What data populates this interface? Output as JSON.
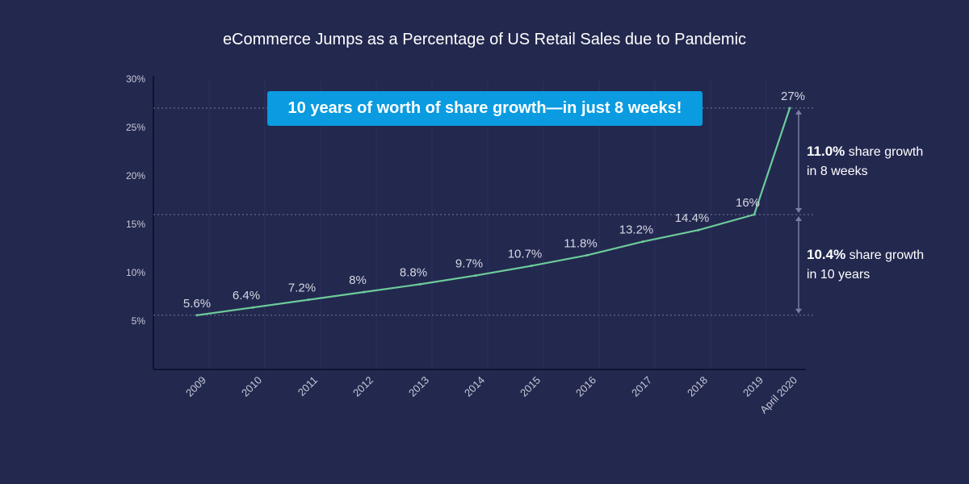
{
  "chart_data": {
    "type": "line",
    "title": "eCommerce Jumps as a Percentage of US Retail Sales due to Pandemic",
    "categories": [
      "2009",
      "2010",
      "2011",
      "2012",
      "2013",
      "2014",
      "2015",
      "2016",
      "2017",
      "2018",
      "2019",
      "April 2020"
    ],
    "series": [
      {
        "values": [
          5.6,
          6.4,
          7.2,
          8,
          8.8,
          9.7,
          10.7,
          11.8,
          13.2,
          14.4,
          16,
          27
        ],
        "labels": [
          "5.6%",
          "6.4%",
          "7.2%",
          "8%",
          "8.8%",
          "9.7%",
          "10.7%",
          "11.8%",
          "13.2%",
          "14.4%",
          "16%",
          "27%"
        ]
      }
    ],
    "yticks": [
      "5%",
      "10%",
      "15%",
      "20%",
      "25%",
      "30%"
    ],
    "ylim": [
      0,
      30
    ],
    "reference_lines": [
      5.6,
      16,
      27
    ],
    "grid": false,
    "line_color": "#6dcb9a",
    "background_color": "#23284f",
    "annotation": {
      "callout": "10 years of worth of share growth—in just 8 weeks!",
      "callout_color": "#0a9be0",
      "upper": {
        "value": "11.0%",
        "text": "share growth",
        "line2": "in 8 weeks"
      },
      "lower": {
        "value": "10.4%",
        "text": "share growth",
        "line2": "in 10 years"
      }
    }
  }
}
